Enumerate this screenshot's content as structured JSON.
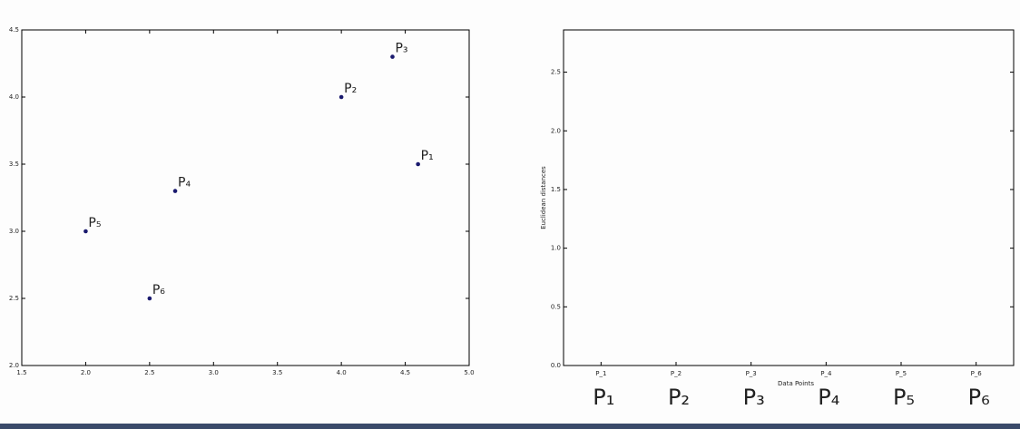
{
  "chart_data": [
    {
      "type": "scatter",
      "x": [
        4.6,
        4.0,
        4.4,
        2.7,
        2.0,
        2.5
      ],
      "values": [
        3.5,
        4.0,
        4.3,
        3.3,
        3.0,
        2.5
      ],
      "point_labels": [
        "P₁",
        "P₂",
        "P₃",
        "P₄",
        "P₅",
        "P₆"
      ],
      "color": "#1a1a6e",
      "xlim": [
        1.5,
        5.0
      ],
      "xticks": [
        1.5,
        {
          "value": 2,
          "label": "2.0"
        },
        2.5,
        {
          "value": 3,
          "label": "3.0"
        },
        3.5,
        {
          "value": 4,
          "label": "4.0"
        },
        4.5,
        {
          "value": 5,
          "label": "5.0"
        }
      ],
      "ylim": [
        2.0,
        4.5
      ],
      "yticks": [
        {
          "value": 2,
          "label": "2.0"
        },
        2.5,
        {
          "value": 3,
          "label": "3.0"
        },
        3.5,
        {
          "value": 4,
          "label": "4.0"
        },
        4.5
      ]
    },
    {
      "type": "dendrogram",
      "categories": [
        "P_1",
        "P_2",
        "P_3",
        "P_4",
        "P_5",
        "P_6"
      ],
      "big_labels": [
        "P₁",
        "P₂",
        "P₃",
        "P₄",
        "P₅",
        "P₆"
      ],
      "xlabel": "Data Points",
      "ylabel": "Euclidean distances",
      "ylim": [
        0,
        2.86
      ],
      "yticks": [
        {
          "value": 0,
          "label": "0.0"
        },
        0.5,
        {
          "value": 1,
          "label": "1.0"
        },
        1.5,
        {
          "value": 2,
          "label": "2.0"
        },
        2.5
      ]
    }
  ]
}
